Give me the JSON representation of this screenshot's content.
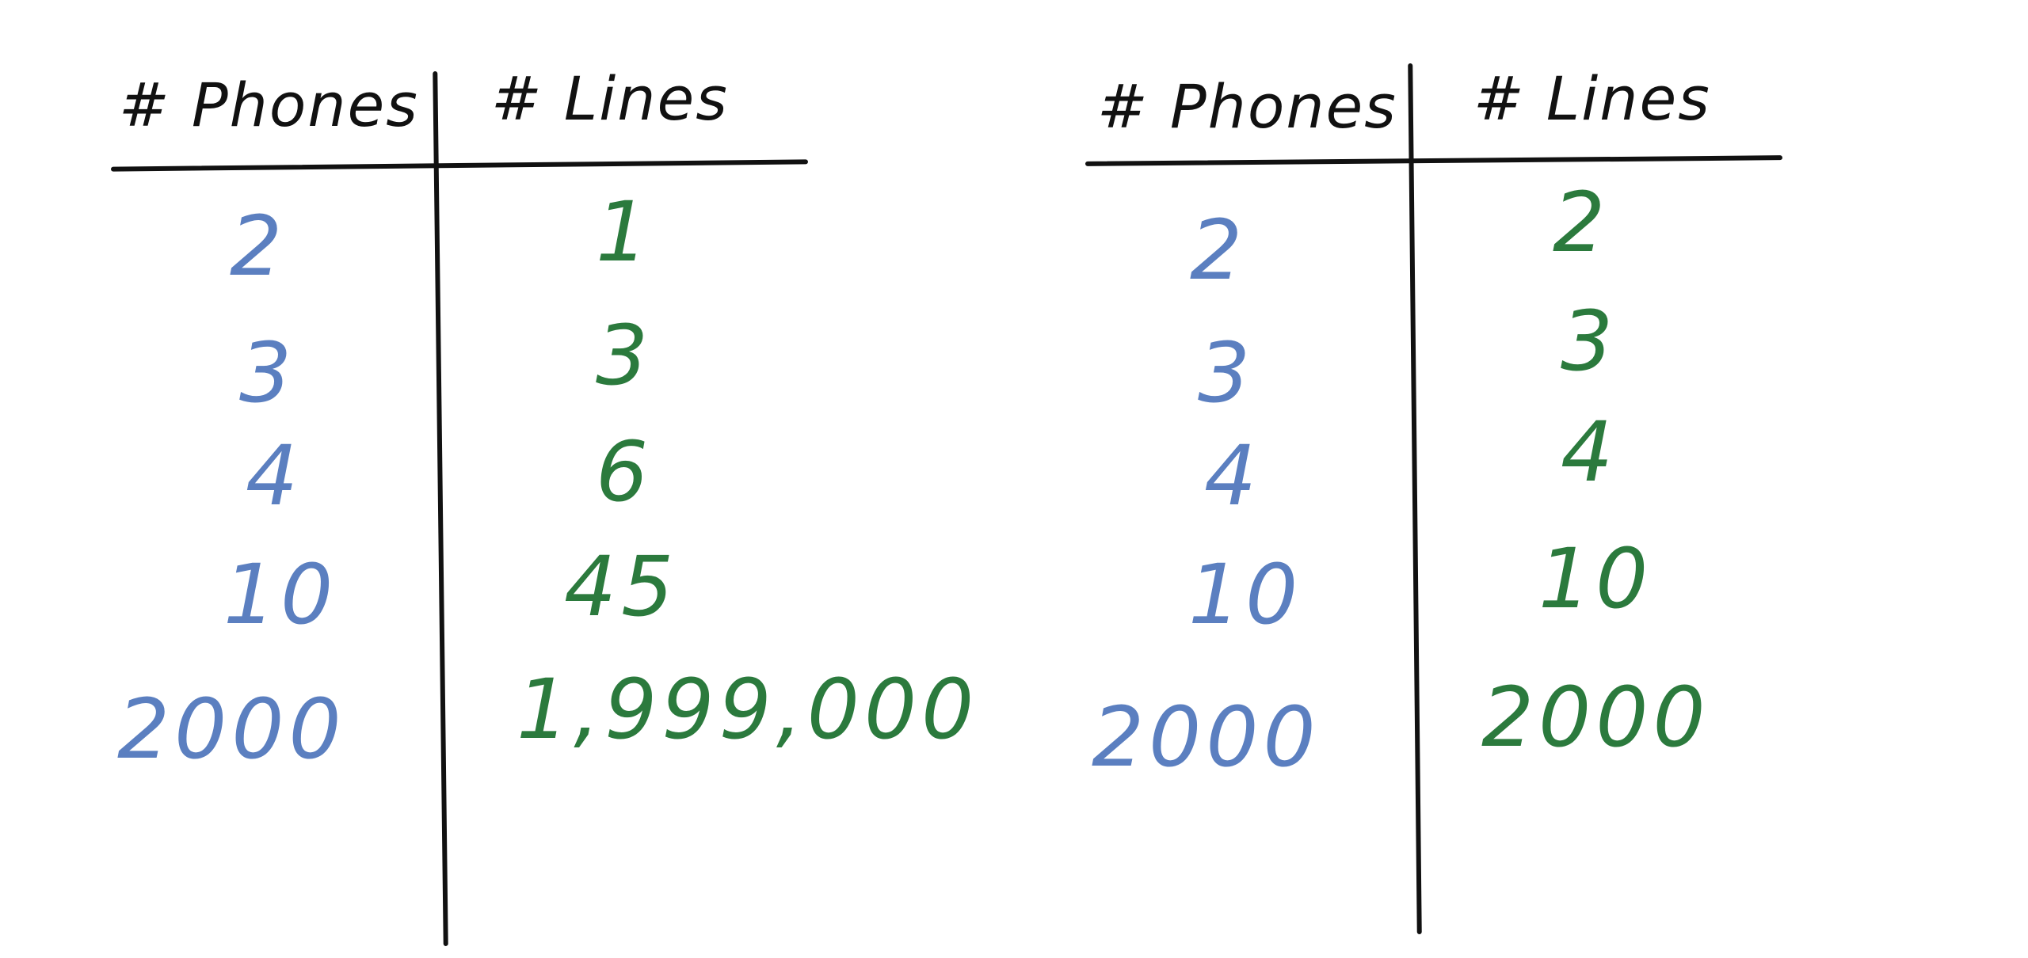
{
  "colors": {
    "ink": "#111111",
    "phones": "#5b7fc0",
    "lines": "#2b7a3d",
    "background": "#ffffff"
  },
  "tables": [
    {
      "headers": {
        "phones": "# Phones",
        "lines": "# Lines"
      },
      "rows": [
        {
          "phones": "2",
          "lines": "1"
        },
        {
          "phones": "3",
          "lines": "3"
        },
        {
          "phones": "4",
          "lines": "6"
        },
        {
          "phones": "10",
          "lines": "45"
        },
        {
          "phones": "2000",
          "lines": "1,999,000"
        }
      ]
    },
    {
      "headers": {
        "phones": "# Phones",
        "lines": "# Lines"
      },
      "rows": [
        {
          "phones": "2",
          "lines": "2"
        },
        {
          "phones": "3",
          "lines": "3"
        },
        {
          "phones": "4",
          "lines": "4"
        },
        {
          "phones": "10",
          "lines": "10"
        },
        {
          "phones": "2000",
          "lines": "2000"
        }
      ]
    }
  ]
}
